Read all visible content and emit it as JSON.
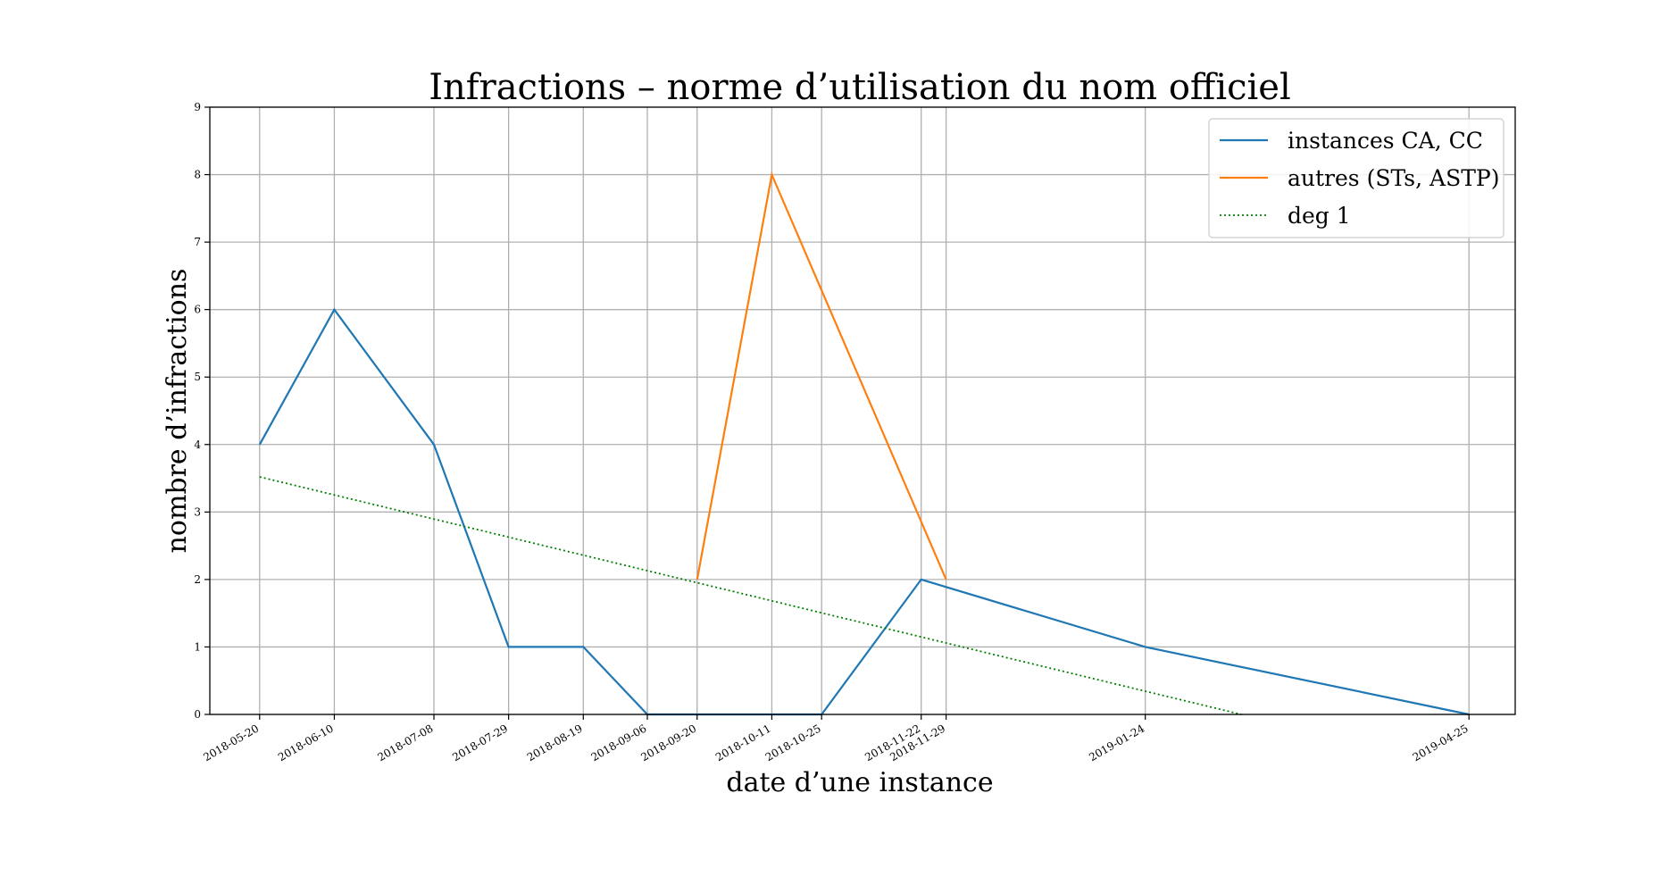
{
  "chart_data": {
    "type": "line",
    "title": "Infractions – norme d’utilisation du nom officiel",
    "xlabel": "date d’une instance",
    "ylabel": "nombre d’infractions",
    "ylim": [
      0,
      9
    ],
    "yticks": [
      0,
      1,
      2,
      3,
      4,
      5,
      6,
      7,
      8,
      9
    ],
    "xlim": [
      "2018-05-06",
      "2019-05-08"
    ],
    "xticks": [
      "2018-05-20",
      "2018-06-10",
      "2018-07-08",
      "2018-07-29",
      "2018-08-19",
      "2018-09-06",
      "2018-09-20",
      "2018-10-11",
      "2018-10-25",
      "2018-11-22",
      "2018-11-29",
      "2019-01-24",
      "2019-04-25"
    ],
    "grid": true,
    "legend_position": "top-right",
    "series": [
      {
        "name": "instances CA, CC",
        "color": "#1f77b4",
        "style": "solid",
        "points": [
          {
            "x": "2018-05-20",
            "y": 4
          },
          {
            "x": "2018-06-10",
            "y": 6
          },
          {
            "x": "2018-07-08",
            "y": 4
          },
          {
            "x": "2018-07-29",
            "y": 1
          },
          {
            "x": "2018-08-19",
            "y": 1
          },
          {
            "x": "2018-09-06",
            "y": 0
          },
          {
            "x": "2018-10-25",
            "y": 0
          },
          {
            "x": "2018-11-22",
            "y": 2
          },
          {
            "x": "2019-01-24",
            "y": 1
          },
          {
            "x": "2019-04-25",
            "y": 0
          }
        ]
      },
      {
        "name": "autres (STs, ASTP)",
        "color": "#ff7f0e",
        "style": "solid",
        "points": [
          {
            "x": "2018-09-20",
            "y": 2
          },
          {
            "x": "2018-10-11",
            "y": 8
          },
          {
            "x": "2018-11-29",
            "y": 2
          }
        ]
      },
      {
        "name": "deg 1",
        "color": "#008000",
        "style": "dotted",
        "points": [
          {
            "x": "2018-05-20",
            "y": 3.52
          },
          {
            "x": "2019-02-20",
            "y": 0
          }
        ]
      }
    ]
  }
}
